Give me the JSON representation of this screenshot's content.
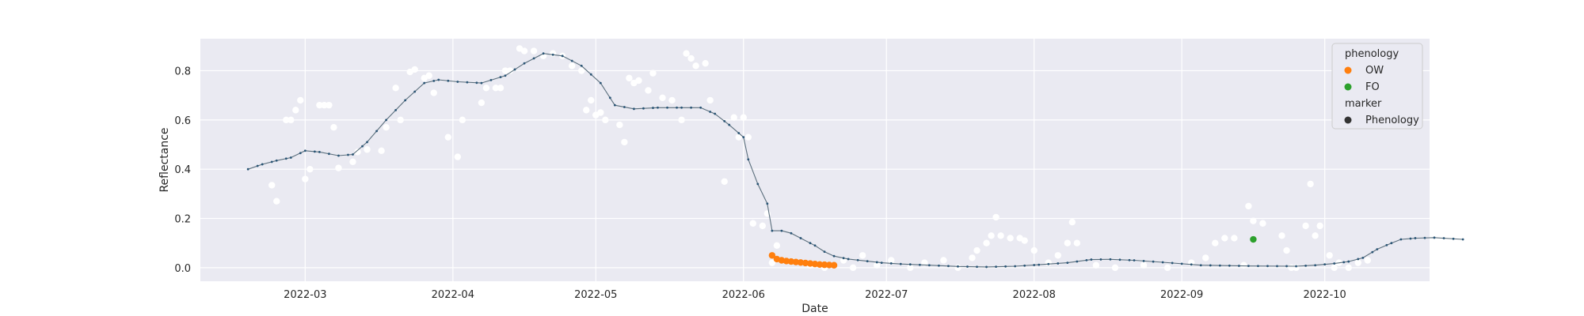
{
  "chart_data": {
    "type": "scatter",
    "xlabel": "Date",
    "ylabel": "Reflectance",
    "xlim": [
      "2022-02-07",
      "2022-10-23"
    ],
    "ylim": [
      -0.055,
      0.93
    ],
    "x_ticks": [
      "2022-03",
      "2022-04",
      "2022-05",
      "2022-06",
      "2022-07",
      "2022-08",
      "2022-09",
      "2022-10"
    ],
    "x_tick_dates": [
      "2022-03-01",
      "2022-04-01",
      "2022-05-01",
      "2022-06-01",
      "2022-07-01",
      "2022-08-01",
      "2022-09-01",
      "2022-10-01"
    ],
    "y_ticks": [
      "0.0",
      "0.2",
      "0.4",
      "0.6",
      "0.8"
    ],
    "y_tick_values": [
      0.0,
      0.2,
      0.4,
      0.6,
      0.8
    ],
    "grid": true,
    "style": "seaborn-darkgrid",
    "legend_placement": "upper-right",
    "colors": {
      "background": "#eaeaf2",
      "grid": "#ffffff",
      "curve": "#2a5575",
      "raw": "#ffffff",
      "OW": "#ff7f0e",
      "FO": "#2ca02c",
      "marker": "#333333"
    },
    "legend": {
      "hue_title": "phenology",
      "hue_entries": [
        {
          "label": "OW",
          "color": "#ff7f0e"
        },
        {
          "label": "FO",
          "color": "#2ca02c"
        }
      ],
      "marker_title": "marker",
      "marker_entries": [
        {
          "label": "Phenology",
          "color": "#333333"
        }
      ]
    },
    "series": [
      {
        "kind": "raw_observations",
        "points": [
          [
            "2022-02-22",
            0.335
          ],
          [
            "2022-02-23",
            0.27
          ],
          [
            "2022-02-25",
            0.6
          ],
          [
            "2022-02-26",
            0.6
          ],
          [
            "2022-02-27",
            0.64
          ],
          [
            "2022-02-28",
            0.68
          ],
          [
            "2022-03-01",
            0.36
          ],
          [
            "2022-03-02",
            0.4
          ],
          [
            "2022-03-04",
            0.66
          ],
          [
            "2022-03-05",
            0.66
          ],
          [
            "2022-03-06",
            0.66
          ],
          [
            "2022-03-07",
            0.57
          ],
          [
            "2022-03-08",
            0.405
          ],
          [
            "2022-03-11",
            0.43
          ],
          [
            "2022-03-12",
            0.47
          ],
          [
            "2022-03-14",
            0.48
          ],
          [
            "2022-03-17",
            0.475
          ],
          [
            "2022-03-18",
            0.57
          ],
          [
            "2022-03-20",
            0.73
          ],
          [
            "2022-03-21",
            0.6
          ],
          [
            "2022-03-23",
            0.795
          ],
          [
            "2022-03-24",
            0.805
          ],
          [
            "2022-03-26",
            0.77
          ],
          [
            "2022-03-27",
            0.78
          ],
          [
            "2022-03-28",
            0.71
          ],
          [
            "2022-03-31",
            0.53
          ],
          [
            "2022-04-02",
            0.45
          ],
          [
            "2022-04-03",
            0.6
          ],
          [
            "2022-04-07",
            0.67
          ],
          [
            "2022-04-08",
            0.73
          ],
          [
            "2022-04-10",
            0.73
          ],
          [
            "2022-04-11",
            0.73
          ],
          [
            "2022-04-12",
            0.8
          ],
          [
            "2022-04-13",
            0.8
          ],
          [
            "2022-04-15",
            0.89
          ],
          [
            "2022-04-16",
            0.88
          ],
          [
            "2022-04-18",
            0.88
          ],
          [
            "2022-04-20",
            0.86
          ],
          [
            "2022-04-22",
            0.87
          ],
          [
            "2022-04-24",
            0.86
          ],
          [
            "2022-04-26",
            0.82
          ],
          [
            "2022-04-28",
            0.8
          ],
          [
            "2022-04-29",
            0.64
          ],
          [
            "2022-04-30",
            0.68
          ],
          [
            "2022-05-01",
            0.62
          ],
          [
            "2022-05-02",
            0.63
          ],
          [
            "2022-05-03",
            0.6
          ],
          [
            "2022-05-06",
            0.58
          ],
          [
            "2022-05-07",
            0.51
          ],
          [
            "2022-05-08",
            0.77
          ],
          [
            "2022-05-09",
            0.75
          ],
          [
            "2022-05-10",
            0.76
          ],
          [
            "2022-05-12",
            0.72
          ],
          [
            "2022-05-13",
            0.79
          ],
          [
            "2022-05-15",
            0.69
          ],
          [
            "2022-05-17",
            0.68
          ],
          [
            "2022-05-19",
            0.6
          ],
          [
            "2022-05-20",
            0.87
          ],
          [
            "2022-05-21",
            0.85
          ],
          [
            "2022-05-22",
            0.82
          ],
          [
            "2022-05-24",
            0.83
          ],
          [
            "2022-05-25",
            0.68
          ],
          [
            "2022-05-28",
            0.35
          ],
          [
            "2022-05-30",
            0.61
          ],
          [
            "2022-05-31",
            0.53
          ],
          [
            "2022-06-01",
            0.61
          ],
          [
            "2022-06-02",
            0.53
          ],
          [
            "2022-06-03",
            0.18
          ],
          [
            "2022-06-05",
            0.17
          ],
          [
            "2022-06-06",
            0.22
          ],
          [
            "2022-06-07",
            0.02
          ],
          [
            "2022-06-08",
            0.09
          ],
          [
            "2022-06-15",
            0.01
          ],
          [
            "2022-06-18",
            0.0
          ],
          [
            "2022-06-22",
            0.03
          ],
          [
            "2022-06-24",
            0.0
          ],
          [
            "2022-06-26",
            0.05
          ],
          [
            "2022-06-29",
            0.01
          ],
          [
            "2022-07-02",
            0.03
          ],
          [
            "2022-07-06",
            0.0
          ],
          [
            "2022-07-09",
            0.02
          ],
          [
            "2022-07-13",
            0.03
          ],
          [
            "2022-07-16",
            0.0
          ],
          [
            "2022-07-19",
            0.04
          ],
          [
            "2022-07-20",
            0.07
          ],
          [
            "2022-07-22",
            0.1
          ],
          [
            "2022-07-23",
            0.13
          ],
          [
            "2022-07-24",
            0.205
          ],
          [
            "2022-07-25",
            0.13
          ],
          [
            "2022-07-27",
            0.12
          ],
          [
            "2022-07-29",
            0.12
          ],
          [
            "2022-07-30",
            0.11
          ],
          [
            "2022-08-01",
            0.07
          ],
          [
            "2022-08-04",
            0.02
          ],
          [
            "2022-08-06",
            0.05
          ],
          [
            "2022-08-08",
            0.1
          ],
          [
            "2022-08-09",
            0.185
          ],
          [
            "2022-08-10",
            0.1
          ],
          [
            "2022-08-14",
            0.01
          ],
          [
            "2022-08-18",
            0.0
          ],
          [
            "2022-08-24",
            0.01
          ],
          [
            "2022-08-29",
            0.0
          ],
          [
            "2022-09-03",
            0.02
          ],
          [
            "2022-09-06",
            0.04
          ],
          [
            "2022-09-08",
            0.1
          ],
          [
            "2022-09-10",
            0.12
          ],
          [
            "2022-09-12",
            0.12
          ],
          [
            "2022-09-14",
            0.01
          ],
          [
            "2022-09-15",
            0.25
          ],
          [
            "2022-09-16",
            0.19
          ],
          [
            "2022-09-18",
            0.18
          ],
          [
            "2022-09-22",
            0.13
          ],
          [
            "2022-09-23",
            0.07
          ],
          [
            "2022-09-24",
            0.0
          ],
          [
            "2022-09-25",
            0.0
          ],
          [
            "2022-09-27",
            0.17
          ],
          [
            "2022-09-28",
            0.34
          ],
          [
            "2022-09-29",
            0.13
          ],
          [
            "2022-09-30",
            0.17
          ],
          [
            "2022-10-02",
            0.05
          ],
          [
            "2022-10-03",
            0.0
          ],
          [
            "2022-10-04",
            0.02
          ],
          [
            "2022-10-06",
            0.0
          ],
          [
            "2022-10-08",
            0.02
          ],
          [
            "2022-10-10",
            0.03
          ]
        ]
      },
      {
        "kind": "smoothed_curve",
        "points": [
          [
            "2022-02-17",
            0.4
          ],
          [
            "2022-02-20",
            0.42
          ],
          [
            "2022-02-23",
            0.435
          ],
          [
            "2022-02-26",
            0.447
          ],
          [
            "2022-03-01",
            0.475
          ],
          [
            "2022-03-04",
            0.47
          ],
          [
            "2022-03-08",
            0.455
          ],
          [
            "2022-03-11",
            0.46
          ],
          [
            "2022-03-14",
            0.51
          ],
          [
            "2022-03-18",
            0.6
          ],
          [
            "2022-03-22",
            0.68
          ],
          [
            "2022-03-26",
            0.75
          ],
          [
            "2022-03-29",
            0.763
          ],
          [
            "2022-04-02",
            0.755
          ],
          [
            "2022-04-07",
            0.75
          ],
          [
            "2022-04-12",
            0.78
          ],
          [
            "2022-04-16",
            0.83
          ],
          [
            "2022-04-20",
            0.87
          ],
          [
            "2022-04-24",
            0.86
          ],
          [
            "2022-04-28",
            0.82
          ],
          [
            "2022-05-02",
            0.75
          ],
          [
            "2022-05-05",
            0.66
          ],
          [
            "2022-05-09",
            0.645
          ],
          [
            "2022-05-14",
            0.65
          ],
          [
            "2022-05-19",
            0.65
          ],
          [
            "2022-05-23",
            0.65
          ],
          [
            "2022-05-26",
            0.625
          ],
          [
            "2022-05-29",
            0.58
          ],
          [
            "2022-06-01",
            0.53
          ],
          [
            "2022-06-02",
            0.44
          ],
          [
            "2022-06-04",
            0.34
          ],
          [
            "2022-06-06",
            0.26
          ],
          [
            "2022-06-07",
            0.15
          ],
          [
            "2022-06-09",
            0.15
          ],
          [
            "2022-06-11",
            0.14
          ],
          [
            "2022-06-13",
            0.12
          ],
          [
            "2022-06-16",
            0.09
          ],
          [
            "2022-06-18",
            0.065
          ],
          [
            "2022-06-20",
            0.047
          ],
          [
            "2022-06-23",
            0.035
          ],
          [
            "2022-06-30",
            0.02
          ],
          [
            "2022-07-04",
            0.015
          ],
          [
            "2022-07-10",
            0.01
          ],
          [
            "2022-07-16",
            0.005
          ],
          [
            "2022-07-22",
            0.003
          ],
          [
            "2022-07-28",
            0.006
          ],
          [
            "2022-08-02",
            0.012
          ],
          [
            "2022-08-08",
            0.02
          ],
          [
            "2022-08-13",
            0.033
          ],
          [
            "2022-08-17",
            0.034
          ],
          [
            "2022-08-22",
            0.03
          ],
          [
            "2022-08-28",
            0.022
          ],
          [
            "2022-09-05",
            0.01
          ],
          [
            "2022-09-15",
            0.007
          ],
          [
            "2022-09-25",
            0.006
          ],
          [
            "2022-09-29",
            0.01
          ],
          [
            "2022-10-03",
            0.017
          ],
          [
            "2022-10-06",
            0.025
          ],
          [
            "2022-10-09",
            0.04
          ],
          [
            "2022-10-12",
            0.075
          ],
          [
            "2022-10-15",
            0.1
          ],
          [
            "2022-10-17",
            0.115
          ],
          [
            "2022-10-20",
            0.12
          ],
          [
            "2022-10-24",
            0.122
          ],
          [
            "2022-10-30",
            0.115
          ]
        ]
      },
      {
        "kind": "phenology",
        "name": "OW",
        "points": [
          [
            "2022-06-07",
            0.05
          ],
          [
            "2022-06-08",
            0.035
          ],
          [
            "2022-06-09",
            0.03
          ],
          [
            "2022-06-10",
            0.027
          ],
          [
            "2022-06-11",
            0.025
          ],
          [
            "2022-06-12",
            0.023
          ],
          [
            "2022-06-13",
            0.021
          ],
          [
            "2022-06-14",
            0.019
          ],
          [
            "2022-06-15",
            0.017
          ],
          [
            "2022-06-16",
            0.015
          ],
          [
            "2022-06-17",
            0.013
          ],
          [
            "2022-06-18",
            0.012
          ],
          [
            "2022-06-19",
            0.011
          ],
          [
            "2022-06-20",
            0.01
          ]
        ]
      },
      {
        "kind": "phenology",
        "name": "FO",
        "points": [
          [
            "2022-09-16",
            0.115
          ]
        ]
      }
    ]
  }
}
